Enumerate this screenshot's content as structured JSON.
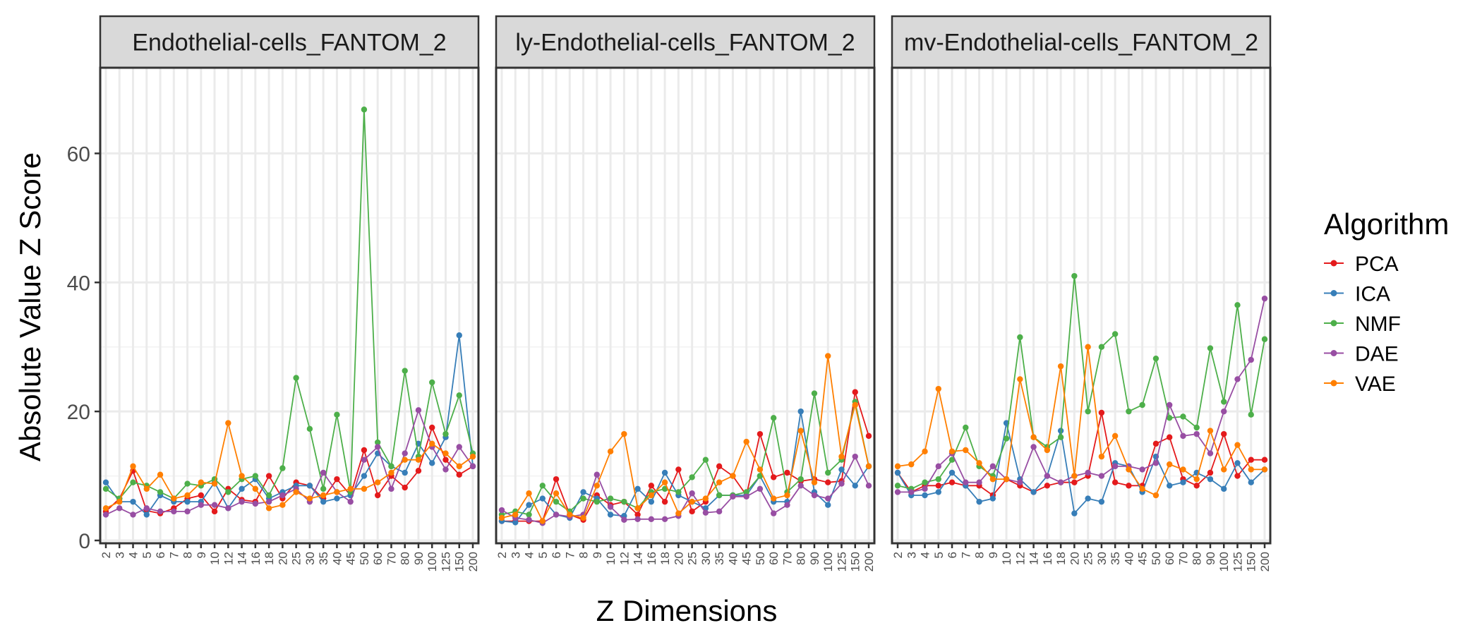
{
  "chart_data": {
    "type": "line",
    "xlabel": "Z Dimensions",
    "ylabel": "Absolute Value Z Score",
    "ylim": [
      0,
      70
    ],
    "yticks": [
      0,
      20,
      40,
      60
    ],
    "legend": {
      "title": "Algorithm",
      "placement": "right"
    },
    "x": [
      "2",
      "3",
      "4",
      "5",
      "6",
      "7",
      "8",
      "9",
      "10",
      "12",
      "14",
      "16",
      "18",
      "20",
      "25",
      "30",
      "35",
      "40",
      "45",
      "50",
      "60",
      "70",
      "80",
      "90",
      "100",
      "125",
      "150",
      "200"
    ],
    "grid": true,
    "colors": {
      "PCA": "#e41a1c",
      "ICA": "#377eb8",
      "NMF": "#4daf4a",
      "DAE": "#984ea3",
      "VAE": "#ff7f00"
    },
    "series_order": [
      "PCA",
      "ICA",
      "NMF",
      "DAE",
      "VAE"
    ],
    "panels": [
      {
        "title": "Endothelial-cells_FANTOM_2",
        "series": [
          {
            "name": "PCA",
            "values": [
              4.5,
              6.5,
              10.8,
              4.6,
              4.2,
              5.0,
              6.5,
              7.0,
              4.5,
              8.0,
              6.3,
              6.0,
              10.0,
              6.5,
              9.0,
              8.5,
              6.5,
              9.5,
              7.0,
              14.0,
              7.0,
              10.0,
              8.2,
              10.8,
              17.5,
              12.5,
              10.2,
              11.5
            ]
          },
          {
            "name": "ICA",
            "values": [
              9.0,
              6.0,
              6.0,
              4.0,
              7.0,
              6.0,
              6.0,
              6.0,
              9.0,
              5.0,
              8.0,
              9.5,
              6.5,
              7.5,
              8.5,
              8.5,
              6.0,
              6.5,
              7.0,
              10.0,
              13.5,
              11.5,
              10.5,
              15.0,
              12.0,
              16.0,
              31.8,
              11.5
            ]
          },
          {
            "name": "NMF",
            "values": [
              8.0,
              6.5,
              9.0,
              8.5,
              7.5,
              6.5,
              8.8,
              8.5,
              9.5,
              7.5,
              9.5,
              10.0,
              7.0,
              11.2,
              25.2,
              17.3,
              8.0,
              19.5,
              7.5,
              66.8,
              15.2,
              11.5,
              26.3,
              13.0,
              24.5,
              16.5,
              22.5,
              13.5
            ]
          },
          {
            "name": "DAE",
            "values": [
              4.0,
              5.0,
              4.0,
              5.0,
              4.5,
              4.5,
              4.5,
              5.5,
              5.5,
              5.0,
              6.0,
              5.7,
              6.0,
              7.0,
              8.0,
              6.0,
              10.5,
              7.5,
              6.0,
              12.5,
              14.5,
              8.0,
              13.5,
              20.2,
              14.5,
              11.0,
              14.5,
              11.5
            ]
          },
          {
            "name": "VAE",
            "values": [
              5.0,
              6.0,
              11.5,
              8.0,
              10.2,
              6.5,
              7.0,
              9.0,
              8.8,
              18.2,
              10.0,
              8.0,
              5.0,
              5.5,
              7.5,
              6.5,
              7.0,
              7.5,
              8.0,
              8.0,
              9.0,
              10.5,
              12.5,
              12.5,
              15.0,
              13.5,
              11.5,
              13.0
            ]
          }
        ]
      },
      {
        "title": "ly-Endothelial-cells_FANTOM_2",
        "series": [
          {
            "name": "PCA",
            "values": [
              3.0,
              3.0,
              3.0,
              3.0,
              9.5,
              4.0,
              3.2,
              7.0,
              5.5,
              6.0,
              4.0,
              8.5,
              6.0,
              11.0,
              4.5,
              6.0,
              11.5,
              10.0,
              7.0,
              16.5,
              9.8,
              10.5,
              9.2,
              9.5,
              9.0,
              9.2,
              23.0,
              16.2
            ]
          },
          {
            "name": "ICA",
            "values": [
              3.0,
              2.8,
              5.5,
              6.5,
              4.0,
              3.5,
              7.5,
              6.5,
              4.0,
              3.8,
              8.0,
              6.0,
              10.5,
              7.0,
              6.0,
              5.0,
              7.0,
              7.0,
              7.0,
              10.0,
              6.0,
              6.0,
              20.0,
              7.5,
              5.5,
              11.0,
              8.5,
              11.5
            ]
          },
          {
            "name": "NMF",
            "values": [
              4.0,
              4.5,
              4.0,
              8.5,
              6.0,
              4.5,
              6.5,
              6.0,
              6.5,
              6.0,
              5.0,
              7.5,
              8.0,
              7.5,
              9.8,
              12.5,
              7.0,
              7.0,
              7.5,
              10.0,
              19.0,
              7.5,
              9.5,
              22.8,
              10.5,
              12.5,
              21.5,
              11.5
            ]
          },
          {
            "name": "DAE",
            "values": [
              4.7,
              3.5,
              3.2,
              2.7,
              4.0,
              3.7,
              4.0,
              10.2,
              5.2,
              3.2,
              3.3,
              3.3,
              3.3,
              3.8,
              7.3,
              4.3,
              4.5,
              6.8,
              6.8,
              8.0,
              4.2,
              5.5,
              8.5,
              7.0,
              6.5,
              8.8,
              13.0,
              8.5
            ]
          },
          {
            "name": "VAE",
            "values": [
              3.5,
              4.0,
              7.3,
              3.0,
              7.3,
              4.0,
              3.5,
              8.5,
              13.8,
              16.5,
              5.0,
              7.0,
              9.0,
              4.2,
              6.0,
              6.5,
              9.0,
              10.0,
              15.3,
              11.0,
              6.5,
              7.0,
              17.0,
              9.0,
              28.6,
              13.0,
              21.0,
              11.5
            ]
          }
        ]
      },
      {
        "title": "mv-Endothelial-cells_FANTOM_2",
        "series": [
          {
            "name": "PCA",
            "values": [
              10.5,
              7.5,
              8.5,
              8.5,
              9.0,
              8.5,
              8.5,
              7.0,
              9.5,
              8.5,
              7.5,
              8.5,
              9.0,
              9.0,
              10.0,
              19.8,
              9.0,
              8.5,
              8.5,
              15.0,
              16.0,
              9.5,
              8.5,
              10.5,
              16.5,
              10.0,
              12.5,
              12.5
            ]
          },
          {
            "name": "ICA",
            "values": [
              10.5,
              7.0,
              7.0,
              7.5,
              10.5,
              8.5,
              6.0,
              6.5,
              18.2,
              9.5,
              7.5,
              10.0,
              17.0,
              4.2,
              6.5,
              6.0,
              12.0,
              11.5,
              7.5,
              13.0,
              8.5,
              9.0,
              10.5,
              9.5,
              8.0,
              12.0,
              9.0,
              11.0
            ]
          },
          {
            "name": "NMF",
            "values": [
              8.5,
              8.0,
              9.0,
              9.5,
              12.5,
              17.5,
              11.5,
              10.0,
              15.8,
              31.5,
              16.0,
              14.5,
              16.0,
              41.0,
              20.0,
              30.0,
              32.0,
              20.0,
              21.0,
              28.2,
              19.0,
              19.2,
              17.5,
              29.8,
              21.5,
              36.5,
              19.5,
              31.2
            ]
          },
          {
            "name": "DAE",
            "values": [
              7.5,
              7.5,
              8.0,
              11.5,
              13.5,
              9.0,
              9.0,
              11.5,
              9.5,
              9.0,
              14.5,
              10.0,
              9.0,
              10.0,
              10.5,
              10.0,
              11.5,
              11.5,
              11.0,
              12.0,
              21.0,
              16.2,
              16.5,
              13.5,
              20.0,
              25.0,
              28.0,
              37.5
            ]
          },
          {
            "name": "VAE",
            "values": [
              11.5,
              11.8,
              13.8,
              23.5,
              13.8,
              14.0,
              12.0,
              9.5,
              9.5,
              25.0,
              16.0,
              14.0,
              27.0,
              10.0,
              30.0,
              13.0,
              16.2,
              11.0,
              8.0,
              7.0,
              11.8,
              11.0,
              9.5,
              17.0,
              11.0,
              14.8,
              11.0,
              11.0
            ]
          }
        ]
      }
    ]
  }
}
